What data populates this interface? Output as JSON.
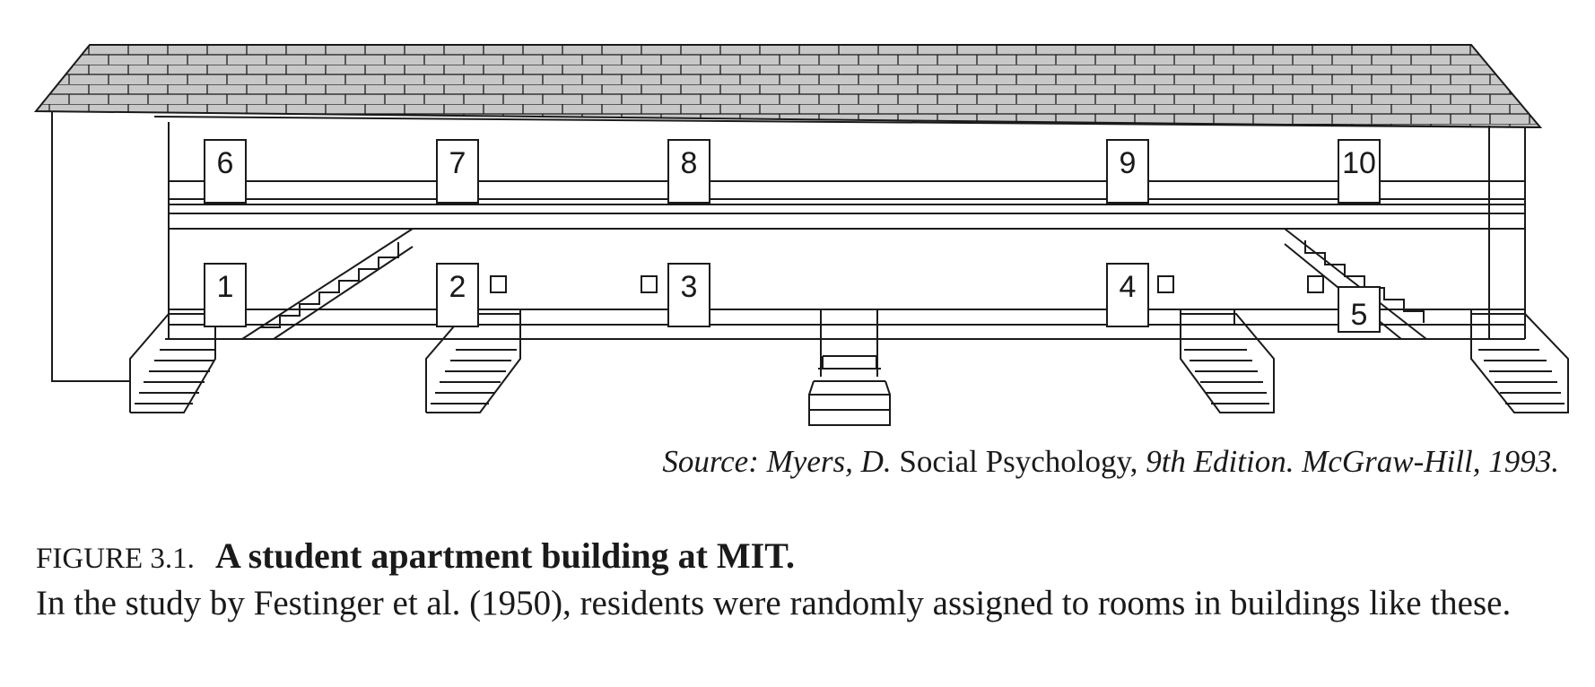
{
  "diagram": {
    "upper_doors": [
      "6",
      "7",
      "8",
      "9",
      "10"
    ],
    "lower_doors": [
      "1",
      "2",
      "3",
      "4",
      "5"
    ]
  },
  "source": {
    "prefix": "Source: Myers, D.",
    "book": "Social Psychology,",
    "suffix": "9th Edition. McGraw-Hill, 1993."
  },
  "caption": {
    "label": "FIGURE 3.1.",
    "title": "A student apartment building at MIT.",
    "body": "In the study by Festinger et al. (1950), residents were randomly assigned to rooms in buildings like these."
  },
  "colors": {
    "line": "#1a1a1a",
    "roof_fill": "#c8c8c8",
    "background": "#ffffff"
  }
}
